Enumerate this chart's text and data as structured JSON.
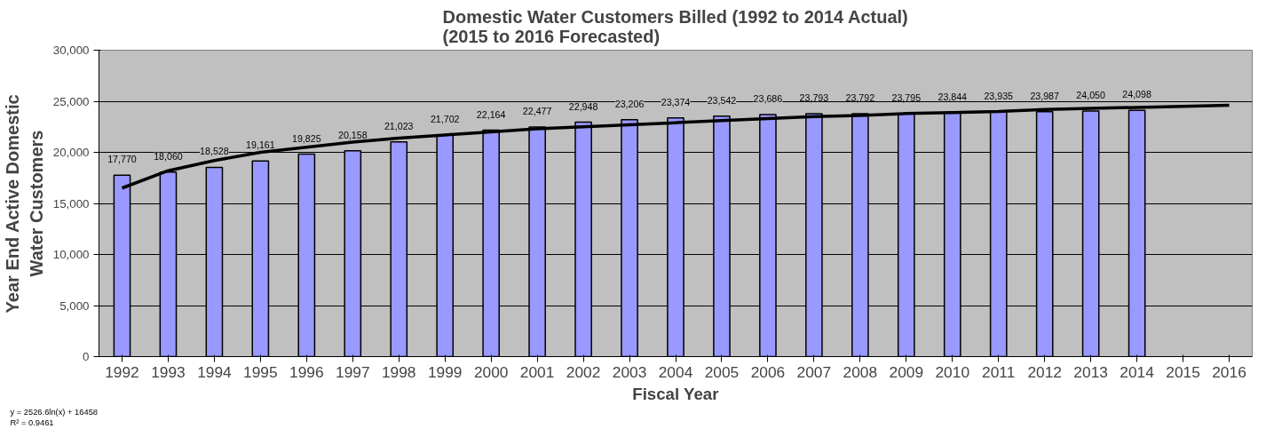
{
  "chart_data": {
    "type": "bar",
    "title": "Domestic Water Customers Billed (1992 to 2014 Actual)\n(2015 to 2016 Forecasted)",
    "xlabel": "Fiscal Year",
    "ylabel": "Year End Active Domestic\nWater Customers",
    "categories": [
      "1992",
      "1993",
      "1994",
      "1995",
      "1996",
      "1997",
      "1998",
      "1999",
      "2000",
      "2001",
      "2002",
      "2003",
      "2004",
      "2005",
      "2006",
      "2007",
      "2008",
      "2009",
      "2010",
      "2011",
      "2012",
      "2013",
      "2014",
      "2015",
      "2016"
    ],
    "series": [
      {
        "color": "#9999ff",
        "values": [
          17770,
          18060,
          18528,
          19161,
          19825,
          20158,
          21023,
          21702,
          22164,
          22477,
          22948,
          23206,
          23374,
          23542,
          23686,
          23793,
          23792,
          23795,
          23844,
          23935,
          23987,
          24050,
          24098,
          null,
          null
        ],
        "value_labels": [
          "17,770",
          "18,060",
          "18,528",
          "19,161",
          "19,825",
          "20,158",
          "21,023",
          "21,702",
          "22,164",
          "22,477",
          "22,948",
          "23,206",
          "23,374",
          "23,542",
          "23,686",
          "23,793",
          "23,792",
          "23,795",
          "23,844",
          "23,935",
          "23,987",
          "24,050",
          "24,098",
          null,
          null
        ]
      },
      {
        "type": "line",
        "color": "#000000",
        "values": [
          16500,
          18200,
          19200,
          20000,
          20500,
          21000,
          21400,
          21700,
          22000,
          22300,
          22500,
          22700,
          22900,
          23100,
          23300,
          23500,
          23600,
          23800,
          23900,
          24000,
          24200,
          24300,
          24400,
          24500,
          24600
        ]
      }
    ],
    "ylim": [
      0,
      30000
    ],
    "yticks": [
      {
        "value": 0,
        "label": "0"
      },
      {
        "value": 5000,
        "label": "5,000"
      },
      {
        "value": 10000,
        "label": "10,000"
      },
      {
        "value": 15000,
        "label": "15,000"
      },
      {
        "value": 20000,
        "label": "20,000"
      },
      {
        "value": 25000,
        "label": "25,000"
      },
      {
        "value": 30000,
        "label": "30,000"
      }
    ],
    "grid": "y",
    "annotations": [
      "y = 2526.6ln(x) + 16458",
      "R² = 0.9461"
    ]
  }
}
